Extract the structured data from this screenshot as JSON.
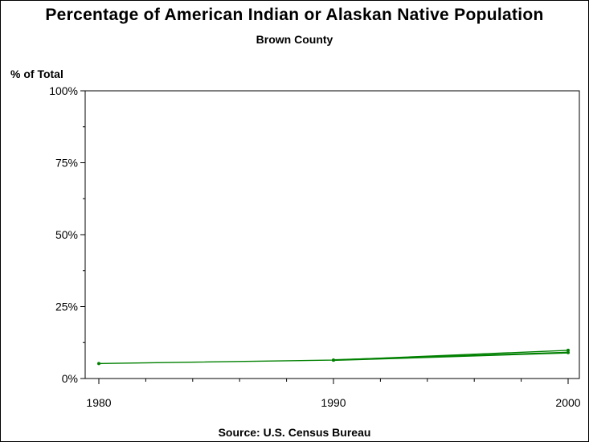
{
  "chart_data": {
    "type": "line",
    "title": "Percentage of American Indian or Alaskan Native Population",
    "subtitle": "Brown County",
    "ylabel": "% of Total",
    "xlabel": "",
    "source": "Source: U.S. Census Bureau",
    "xlim": [
      1980,
      2000
    ],
    "ylim": [
      0,
      100
    ],
    "x_ticks": [
      1980,
      1990,
      2000
    ],
    "x_tick_labels": [
      "1980",
      "1990",
      "2000"
    ],
    "y_ticks": [
      0,
      25,
      50,
      75,
      100
    ],
    "y_tick_labels": [
      "0%",
      "25%",
      "50%",
      "75%",
      "100%"
    ],
    "grid": false,
    "line_color": "#008000",
    "series": [
      {
        "x": [
          1980,
          1990,
          2000
        ],
        "values": [
          5.2,
          6.4,
          9.8
        ]
      },
      {
        "x": [
          1990,
          2000
        ],
        "values": [
          6.4,
          9.0
        ]
      }
    ]
  }
}
